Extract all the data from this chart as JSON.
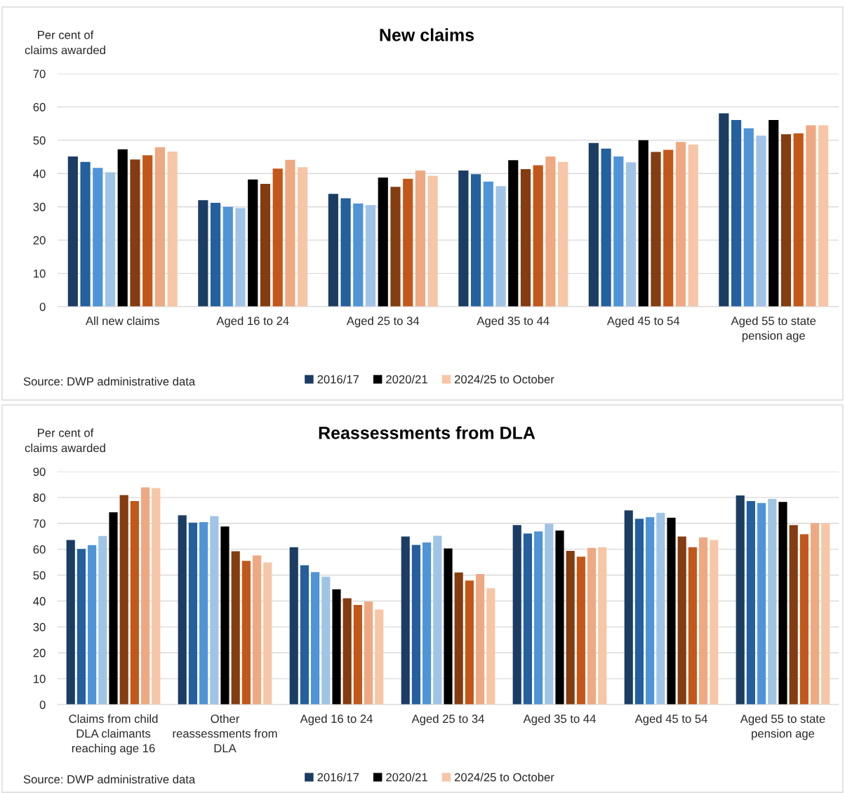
{
  "chart_data": [
    {
      "type": "bar",
      "title": "New claims",
      "ylabel": "Per cent of\nclaims awarded",
      "categories": [
        "All new claims",
        "Aged 16 to 24",
        "Aged 25 to 34",
        "Aged 35 to 44",
        "Aged 45 to 54",
        "Aged 55 to state\npension age"
      ],
      "series": [
        {
          "name": "2016/17",
          "color": "#1b3d63",
          "values": [
            45.1,
            32.0,
            33.9,
            40.9,
            49.2,
            58.1
          ]
        },
        {
          "color": "#245f9e",
          "values": [
            43.5,
            31.2,
            32.6,
            39.8,
            47.5,
            56.1
          ]
        },
        {
          "color": "#4f94d6",
          "values": [
            41.7,
            30.0,
            31.0,
            37.6,
            45.1,
            53.6
          ]
        },
        {
          "color": "#a0c4e6",
          "values": [
            40.4,
            29.6,
            30.5,
            36.2,
            43.4,
            51.4
          ]
        },
        {
          "name": "2020/21",
          "color": "#000000",
          "values": [
            47.3,
            38.2,
            38.8,
            44.0,
            50.0,
            56.1
          ]
        },
        {
          "color": "#843c10",
          "values": [
            44.2,
            36.9,
            36.0,
            41.3,
            46.5,
            51.8
          ]
        },
        {
          "color": "#c2571a",
          "values": [
            45.5,
            41.5,
            38.4,
            42.5,
            47.1,
            52.1
          ]
        },
        {
          "color": "#eea982",
          "values": [
            47.9,
            44.1,
            40.9,
            45.1,
            49.5,
            54.5
          ]
        },
        {
          "name": "2024/25 to October",
          "color": "#f6c6a6",
          "values": [
            46.6,
            41.9,
            39.3,
            43.5,
            48.7,
            54.5
          ]
        }
      ],
      "ylim": [
        0,
        70
      ],
      "yticks": [
        0,
        10,
        20,
        30,
        40,
        50,
        60,
        70
      ],
      "grid": "y",
      "legend": "bottom",
      "annotations": [
        "Source: DWP administrative data"
      ]
    },
    {
      "type": "bar",
      "title": "Reassessments from DLA",
      "ylabel": "Per cent of\nclaims awarded",
      "categories": [
        "Claims from child\nDLA claimants\nreaching age 16",
        "Other\nreassessments from\nDLA",
        "Aged 16 to 24",
        "Aged 25 to 34",
        "Aged 35 to 44",
        "Aged 45 to 54",
        "Aged 55 to state\npension age"
      ],
      "series": [
        {
          "name": "2016/17",
          "color": "#1b3d63",
          "values": [
            63.6,
            73.1,
            60.8,
            64.9,
            69.3,
            75.0,
            80.8
          ]
        },
        {
          "color": "#245f9e",
          "values": [
            60.1,
            70.3,
            53.8,
            61.7,
            66.1,
            71.8,
            78.6
          ]
        },
        {
          "color": "#4f94d6",
          "values": [
            61.6,
            70.5,
            51.2,
            62.6,
            66.9,
            72.4,
            77.9
          ]
        },
        {
          "color": "#a0c4e6",
          "values": [
            65.1,
            72.8,
            49.4,
            65.2,
            69.9,
            74.1,
            79.4
          ]
        },
        {
          "name": "2020/21",
          "color": "#000000",
          "values": [
            74.3,
            68.8,
            44.5,
            60.3,
            67.2,
            72.2,
            78.3
          ]
        },
        {
          "color": "#843c10",
          "values": [
            80.9,
            59.2,
            41.1,
            51.0,
            59.4,
            64.9,
            69.3
          ]
        },
        {
          "color": "#c2571a",
          "values": [
            78.6,
            55.5,
            38.5,
            47.9,
            57.1,
            60.8,
            65.8
          ]
        },
        {
          "color": "#eea982",
          "values": [
            83.9,
            57.6,
            39.8,
            50.4,
            60.5,
            64.6,
            70.1
          ]
        },
        {
          "name": "2024/25 to October",
          "color": "#f6c6a6",
          "values": [
            83.6,
            54.9,
            36.7,
            44.9,
            60.8,
            63.6,
            70.0
          ]
        }
      ],
      "ylim": [
        0,
        90
      ],
      "yticks": [
        0,
        10,
        20,
        30,
        40,
        50,
        60,
        70,
        80,
        90
      ],
      "grid": "y",
      "legend": "bottom",
      "annotations": [
        "Source: DWP administrative data"
      ]
    }
  ]
}
